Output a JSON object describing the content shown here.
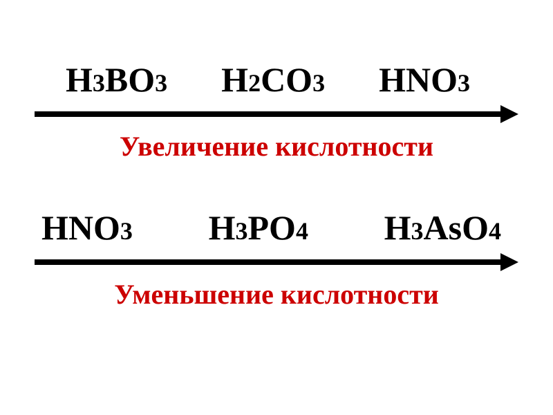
{
  "diagram1": {
    "formula1": {
      "parts": [
        "H",
        "3",
        "BO",
        "3"
      ]
    },
    "formula2": {
      "parts": [
        "H",
        "2",
        "CO",
        "3"
      ]
    },
    "formula3": {
      "parts": [
        "HNO",
        "3"
      ]
    },
    "caption": "Увеличение кислотности",
    "arrow_color": "#000000",
    "caption_color": "#cc0000",
    "formula_color": "#000000",
    "formula_fontsize": 50,
    "caption_fontsize": 40
  },
  "diagram2": {
    "formula1": {
      "parts": [
        "HNO",
        "3"
      ]
    },
    "formula2": {
      "parts": [
        "H",
        "3",
        "PO",
        "4"
      ]
    },
    "formula3": {
      "parts": [
        "H",
        "3",
        "AsO",
        "4"
      ]
    },
    "caption": "Уменьшение кислотности",
    "arrow_color": "#000000",
    "caption_color": "#cc0000",
    "formula_color": "#000000",
    "formula_fontsize": 50,
    "caption_fontsize": 40
  },
  "background_color": "#ffffff"
}
